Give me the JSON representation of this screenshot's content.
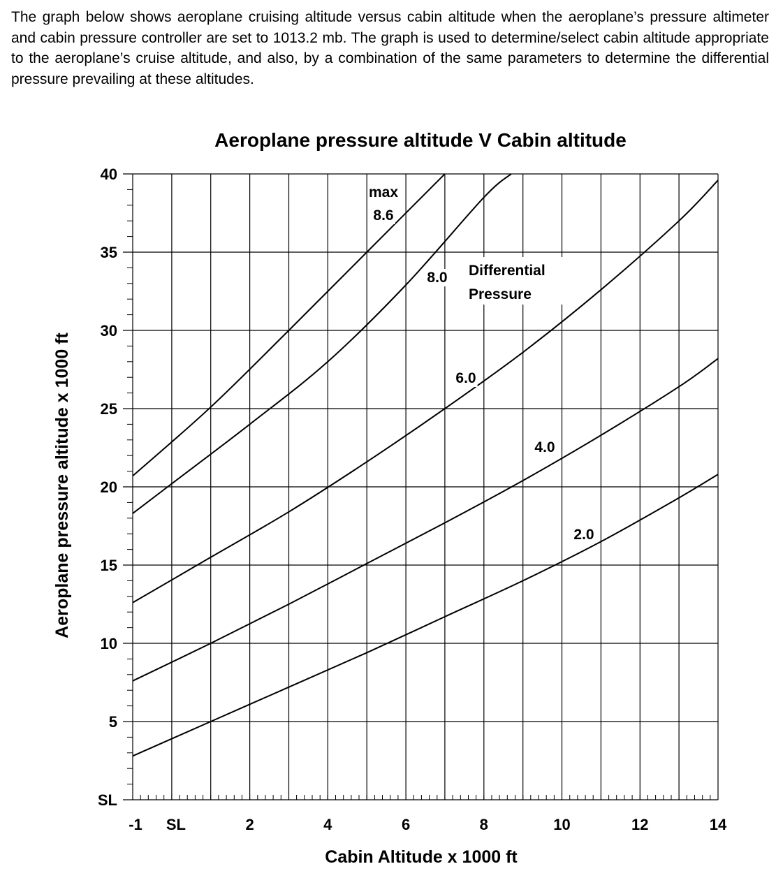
{
  "intro_text": "The graph below shows aeroplane cruising altitude versus cabin altitude when the aeroplane’s pressure altimeter and cabin pressure controller are set to 1013.2 mb. The graph is used to determine/select cabin altitude appropriate to the aeroplane’s cruise altitude, and also, by a combination of the same parameters to determine the differential pressure prevailing at these altitudes.",
  "chart_data": {
    "type": "line",
    "title": "Aeroplane pressure altitude V Cabin altitude",
    "xlabel": "Cabin Altitude x 1000 ft",
    "ylabel": "Aeroplane pressure altitude x 1000 ft",
    "xlim": [
      -1,
      14
    ],
    "ylim": [
      0,
      40
    ],
    "xticks": [
      {
        "value": -1,
        "label": "-1"
      },
      {
        "value": 0,
        "label": "SL"
      },
      {
        "value": 2,
        "label": "2"
      },
      {
        "value": 4,
        "label": "4"
      },
      {
        "value": 6,
        "label": "6"
      },
      {
        "value": 8,
        "label": "8"
      },
      {
        "value": 10,
        "label": "10"
      },
      {
        "value": 12,
        "label": "12"
      },
      {
        "value": 14,
        "label": "14"
      }
    ],
    "yticks": [
      {
        "value": 0,
        "label": "SL"
      },
      {
        "value": 5,
        "label": "5"
      },
      {
        "value": 10,
        "label": "10"
      },
      {
        "value": 15,
        "label": "15"
      },
      {
        "value": 20,
        "label": "20"
      },
      {
        "value": 25,
        "label": "25"
      },
      {
        "value": 30,
        "label": "30"
      },
      {
        "value": 35,
        "label": "35"
      },
      {
        "value": 40,
        "label": "40"
      }
    ],
    "grid": true,
    "series": [
      {
        "name": "8.6",
        "points": [
          [
            -1,
            20.7
          ],
          [
            1,
            25.1
          ],
          [
            3,
            30.0
          ],
          [
            5,
            35.0
          ],
          [
            7,
            40.0
          ]
        ]
      },
      {
        "name": "8.0",
        "points": [
          [
            -1,
            18.3
          ],
          [
            0,
            20.2
          ],
          [
            2,
            24.0
          ],
          [
            4,
            28.0
          ],
          [
            6,
            32.9
          ],
          [
            8,
            38.5
          ],
          [
            8.7,
            40.0
          ]
        ]
      },
      {
        "name": "6.0",
        "points": [
          [
            -1,
            12.6
          ],
          [
            1,
            15.5
          ],
          [
            3,
            18.4
          ],
          [
            5,
            21.6
          ],
          [
            7,
            25.0
          ],
          [
            9,
            28.6
          ],
          [
            11,
            32.6
          ],
          [
            13,
            37.0
          ],
          [
            14,
            39.6
          ]
        ]
      },
      {
        "name": "4.0",
        "points": [
          [
            -1,
            7.6
          ],
          [
            1,
            10.0
          ],
          [
            3,
            12.5
          ],
          [
            5,
            15.1
          ],
          [
            7,
            17.7
          ],
          [
            9,
            20.4
          ],
          [
            11,
            23.3
          ],
          [
            13,
            26.4
          ],
          [
            14,
            28.2
          ]
        ]
      },
      {
        "name": "2.0",
        "points": [
          [
            -1,
            2.8
          ],
          [
            1,
            5.0
          ],
          [
            3,
            7.2
          ],
          [
            5,
            9.4
          ],
          [
            7,
            11.7
          ],
          [
            9,
            14.0
          ],
          [
            11,
            16.5
          ],
          [
            13,
            19.3
          ],
          [
            14,
            20.8
          ]
        ]
      }
    ],
    "annotations": {
      "max_label": "max",
      "curve_8_6": "8.6",
      "curve_8_0": "8.0",
      "curve_6_0": "6.0",
      "curve_4_0": "4.0",
      "curve_2_0": "2.0",
      "diff_line1": "Differential",
      "diff_line2": "Pressure"
    }
  }
}
